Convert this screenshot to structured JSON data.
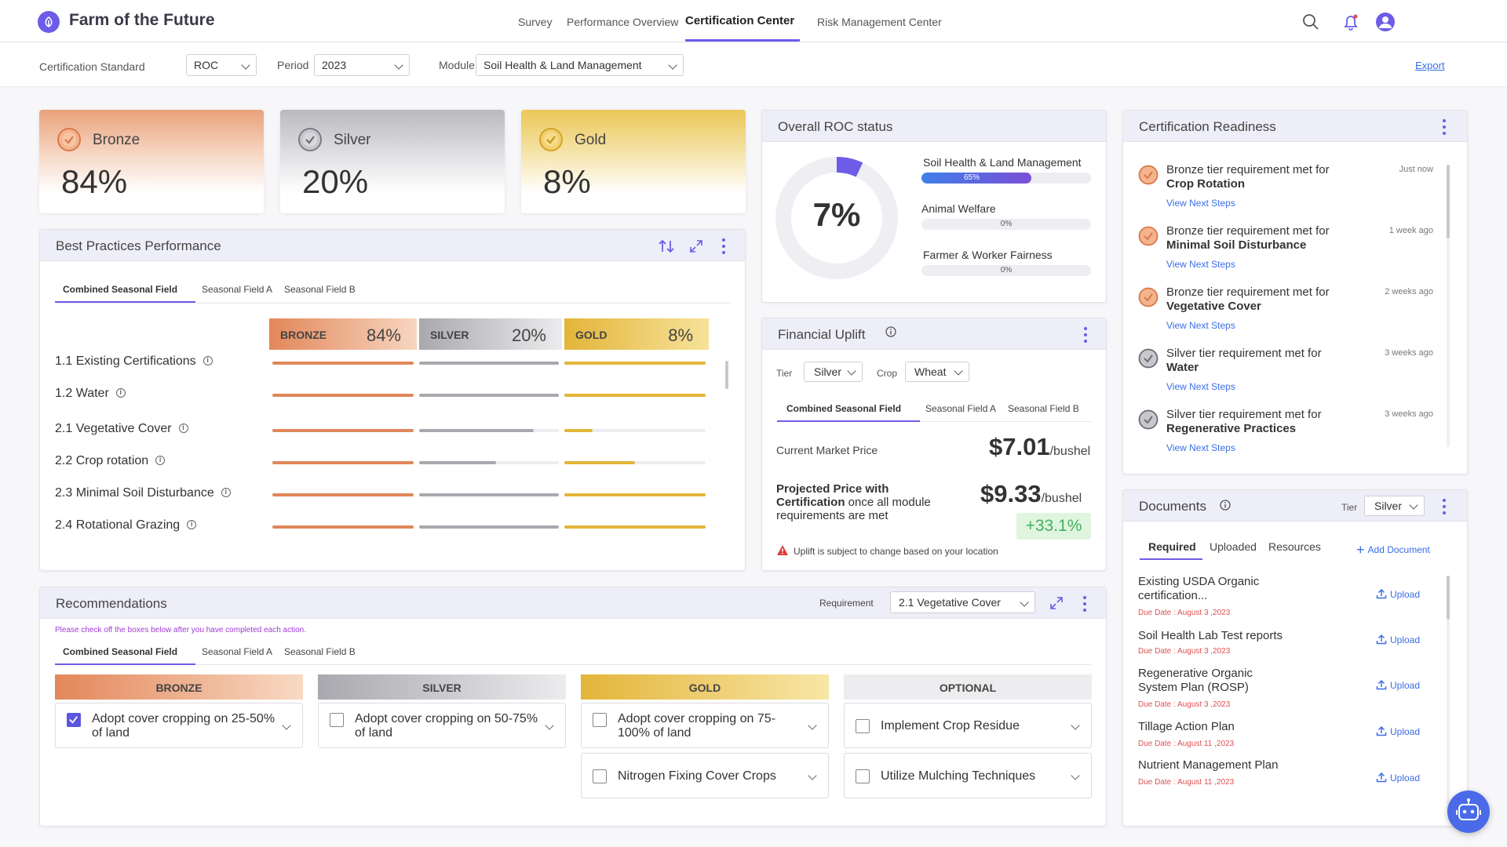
{
  "header": {
    "title": "Farm of the Future",
    "nav": [
      "Survey",
      "Performance Overview",
      "Certification Center",
      "Risk Management Center"
    ],
    "active_nav": "Certification Center"
  },
  "filters": {
    "standard_label": "Certification Standard",
    "standard_value": "ROC",
    "period_label": "Period",
    "period_value": "2023",
    "module_label": "Module",
    "module_value": "Soil Health & Land Management",
    "export_label": "Export"
  },
  "tiers": [
    {
      "name": "Bronze",
      "value": "84%",
      "color": "#e8976a"
    },
    {
      "name": "Silver",
      "value": "20%",
      "color": "#a8a8ae"
    },
    {
      "name": "Gold",
      "value": "8%",
      "color": "#e8c050"
    }
  ],
  "practices": {
    "title": "Best Practices Performance",
    "tabs": [
      "Combined Seasonal Field",
      "Seasonal Field A",
      "Seasonal Field B"
    ],
    "headers": [
      {
        "name": "BRONZE",
        "value": "84%"
      },
      {
        "name": "SILVER",
        "value": "20%"
      },
      {
        "name": "GOLD",
        "value": "8%"
      }
    ],
    "rows": [
      {
        "label": "1.1 Existing Certifications",
        "bronze": 1.0,
        "silver": 1.0,
        "gold": 1.0
      },
      {
        "label": "1.2 Water",
        "bronze": 1.0,
        "silver": 1.0,
        "gold": 1.0
      },
      {
        "label": "2.1 Vegetative Cover",
        "bronze": 1.0,
        "silver": 0.82,
        "gold": 0.2
      },
      {
        "label": "2.2 Crop rotation",
        "bronze": 1.0,
        "silver": 0.55,
        "gold": 0.5
      },
      {
        "label": "2.3 Minimal Soil Disturbance",
        "bronze": 1.0,
        "silver": 1.0,
        "gold": 1.0
      },
      {
        "label": "2.4 Rotational Grazing",
        "bronze": 1.0,
        "silver": 1.0,
        "gold": 1.0
      }
    ]
  },
  "roc": {
    "title": "Overall ROC status",
    "overall": "7%",
    "overall_fraction": 0.07,
    "modules": [
      {
        "name": "Soil Health & Land Management",
        "label": "65%",
        "fraction": 0.65
      },
      {
        "name": "Animal Welfare",
        "label": "0%",
        "fraction": 0
      },
      {
        "name": "Farmer & Worker Fairness",
        "label": "0%",
        "fraction": 0
      }
    ]
  },
  "financial": {
    "title": "Financial Uplift",
    "tier_label": "Tier",
    "tier_value": "Silver",
    "crop_label": "Crop",
    "crop_value": "Wheat",
    "tabs": [
      "Combined Seasonal Field",
      "Seasonal Field A",
      "Seasonal Field B"
    ],
    "current_label": "Current Market Price",
    "current_price": "$7.01",
    "unit": "/bushel",
    "projected_bold": "Projected Price with Certification",
    "projected_rest": " once all module requirements are met",
    "projected_price": "$9.33",
    "uplift": "+33.1%",
    "note": "Uplift is subject to change based on your location"
  },
  "readiness": {
    "title": "Certification Readiness",
    "link_label": "View Next Steps",
    "items": [
      {
        "tier": "bronze",
        "text": "Bronze tier requirement met for",
        "subject": "Crop Rotation",
        "time": "Just now"
      },
      {
        "tier": "bronze",
        "text": "Bronze tier requirement met for",
        "subject": "Minimal Soil Disturbance",
        "time": "1 week ago"
      },
      {
        "tier": "bronze",
        "text": "Bronze tier requirement met for",
        "subject": "Vegetative Cover",
        "time": "2 weeks ago"
      },
      {
        "tier": "silver",
        "text": "Silver tier requirement met for",
        "subject": "Water",
        "time": "3 weeks ago"
      },
      {
        "tier": "silver",
        "text": "Silver tier requirement met for",
        "subject": "Regenerative Practices",
        "time": "3 weeks ago"
      }
    ]
  },
  "documents": {
    "title": "Documents",
    "tier_label": "Tier",
    "tier_value": "Silver",
    "tabs": [
      "Required",
      "Uploaded",
      "Resources"
    ],
    "add_label": "Add Document",
    "upload_label": "Upload",
    "items": [
      {
        "name": "Existing USDA Organic certification...",
        "due": "Due Date : August 3 ,2023"
      },
      {
        "name": "Soil Health Lab Test reports",
        "due": "Due Date : August 3 ,2023"
      },
      {
        "name": "Regenerative Organic System Plan (ROSP)",
        "due": "Due Date : August 3 ,2023"
      },
      {
        "name": "Tillage Action Plan",
        "due": "Due Date : August  11 ,2023"
      },
      {
        "name": "Nutrient Management Plan",
        "due": "Due Date : August  11 ,2023"
      }
    ]
  },
  "recommendations": {
    "title": "Recommendations",
    "requirement_label": "Requirement",
    "requirement_value": "2.1 Vegetative Cover",
    "note": "Please check off the boxes below after you have completed each action.",
    "tabs": [
      "Combined Seasonal Field",
      "Seasonal Field A",
      "Seasonal Field B"
    ],
    "columns": [
      {
        "name": "BRONZE",
        "items": [
          {
            "text": "Adopt cover cropping on 25-50% of land",
            "checked": true
          }
        ]
      },
      {
        "name": "SILVER",
        "items": [
          {
            "text": "Adopt cover cropping on 50-75% of land",
            "checked": false
          }
        ]
      },
      {
        "name": "GOLD",
        "items": [
          {
            "text": "Adopt cover cropping on 75-100% of land",
            "checked": false
          },
          {
            "text": "Nitrogen Fixing Cover Crops",
            "checked": false
          }
        ]
      },
      {
        "name": "OPTIONAL",
        "items": [
          {
            "text": "Implement Crop Residue",
            "checked": false
          },
          {
            "text": "Utilize Mulching Techniques",
            "checked": false
          }
        ]
      }
    ]
  },
  "colors": {
    "accent": "#6c5ce7",
    "bronze": "#e0875a",
    "silver": "#a8a8ae",
    "gold": "#e3b53a",
    "link": "#3a6ee8"
  }
}
